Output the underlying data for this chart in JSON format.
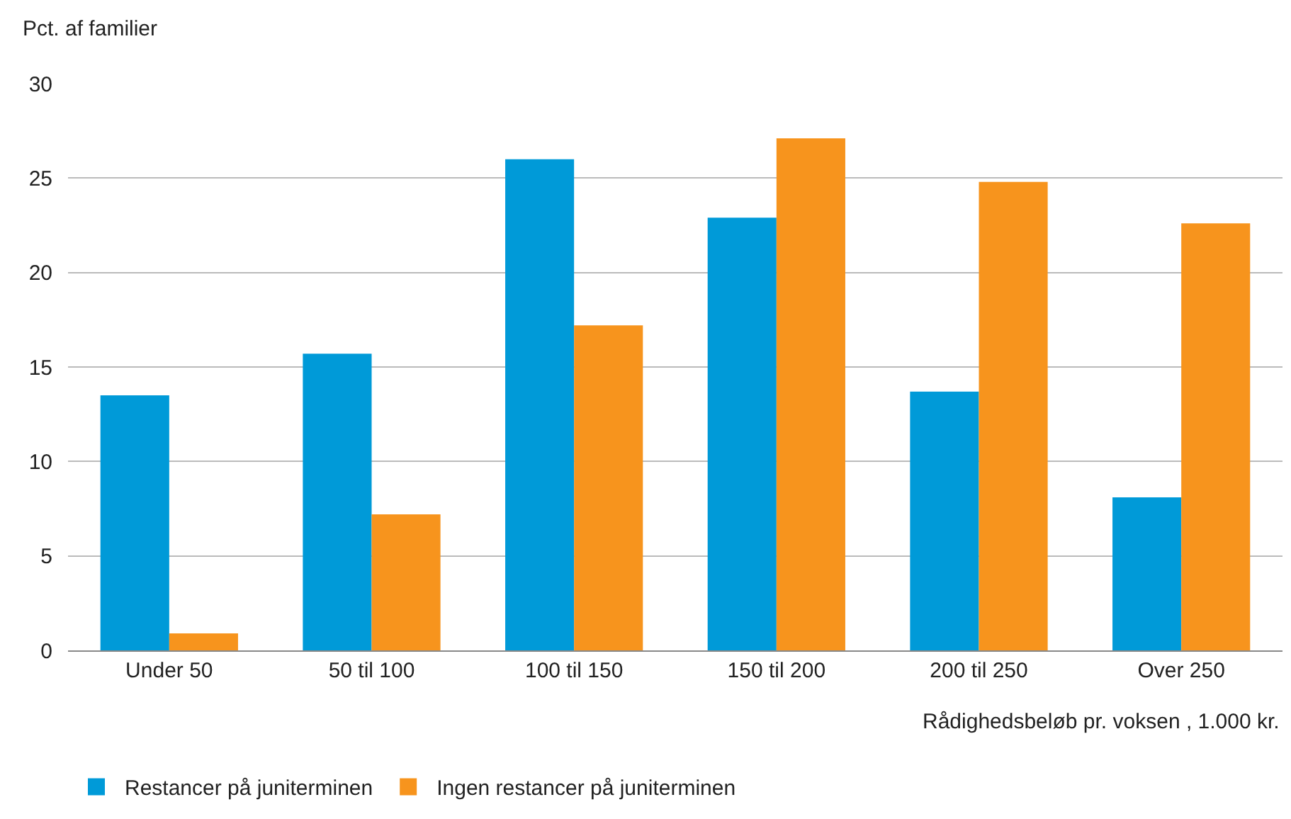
{
  "chart_data": {
    "type": "bar",
    "ylabel": "Pct. af familier",
    "xlabel": "Rådighedsbeløb pr. voksen , 1.000 kr.",
    "categories": [
      "Under 50",
      "50 til 100",
      "100 til 150",
      "150 til 200",
      "200 til 250",
      "Over 250"
    ],
    "series": [
      {
        "name": "Restancer på juniterminen",
        "color": "#009ad8",
        "values": [
          13.5,
          15.7,
          26.0,
          22.9,
          13.7,
          8.1
        ]
      },
      {
        "name": "Ingen restancer på juniterminen",
        "color": "#f7941d",
        "values": [
          0.9,
          7.2,
          17.2,
          27.1,
          24.8,
          22.6
        ]
      }
    ],
    "ylim": [
      0,
      30
    ],
    "yticks": [
      0,
      5,
      10,
      15,
      20,
      25,
      30
    ],
    "grid": "y",
    "legend": "bottom left"
  }
}
